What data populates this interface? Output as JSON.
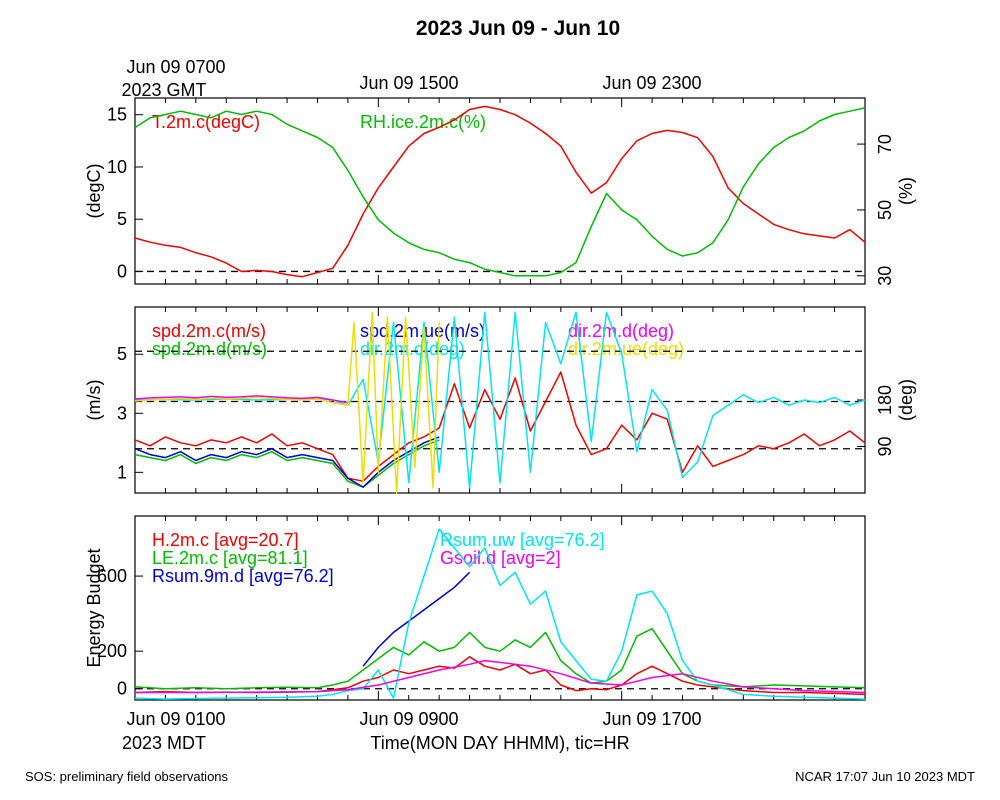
{
  "title": "2023 Jun 09 - Jun 10",
  "top_axis": {
    "gmt_first": "Jun 09 0700",
    "gmt_first_year": "2023 GMT",
    "tick2": "Jun 09 1500",
    "tick3": "Jun 09 2300"
  },
  "bottom_axis": {
    "tick1": "Jun 09 0100",
    "tick1_year": "2023 MDT",
    "tick2": "Jun 09 0900",
    "tick3": "Jun 09 1700",
    "xlabel": "Time(MON DAY HHMM), tic=HR"
  },
  "footer": {
    "left": "SOS: preliminary field observations",
    "right": "NCAR 17:07 Jun 10 2023 MDT"
  },
  "colors": {
    "red": "#ee0000",
    "green": "#00bb00",
    "blue": "#0000cc",
    "cyan": "#00e5ee",
    "magenta": "#ee00ee",
    "yellow": "#eedd00"
  },
  "chart_data": [
    {
      "type": "line",
      "xlim": [
        0,
        24
      ],
      "ylabel": "(degC)",
      "ylim": [
        -1.2,
        16.6
      ],
      "yticks": [
        "0",
        "5",
        "10",
        "15"
      ],
      "y2label": "(%)",
      "y2lim": [
        27.5,
        84
      ],
      "y2ticks": [
        "30",
        "50",
        "70"
      ],
      "legend": {
        "t": "T.2m.c(degC)",
        "rh": "RH.ice.2m.c(%)"
      },
      "ref_lines": [
        0
      ],
      "series": [
        {
          "name": "T.2m.c(degC)",
          "color": "red",
          "axis": "left",
          "x": [
            0,
            0.5,
            1,
            1.5,
            2,
            2.5,
            3,
            3.5,
            4,
            4.5,
            5,
            5.5,
            6,
            6.5,
            7,
            7.5,
            8,
            8.5,
            9,
            9.5,
            10,
            10.5,
            11,
            11.5,
            12,
            12.5,
            13,
            13.5,
            14,
            14.5,
            15,
            15.5,
            16,
            16.5,
            17,
            17.5,
            18,
            18.5,
            19,
            19.5,
            20,
            20.5,
            21,
            21.5,
            22,
            22.5,
            23,
            23.5,
            24
          ],
          "values": [
            3.2,
            2.8,
            2.5,
            2.3,
            1.8,
            1.4,
            0.8,
            0.0,
            0.1,
            0.0,
            -0.3,
            -0.5,
            -0.1,
            0.3,
            2.5,
            5.5,
            8,
            10,
            12,
            13.2,
            13.8,
            14.5,
            15.5,
            15.8,
            15.5,
            15,
            14.2,
            13.2,
            12,
            9.5,
            7.5,
            8.5,
            10.8,
            12.5,
            13.2,
            13.5,
            13.3,
            12.8,
            11,
            8,
            6.5,
            5.5,
            4.5,
            4,
            3.6,
            3.4,
            3.2,
            4,
            2.8
          ]
        },
        {
          "name": "RH.ice.2m.c(%)",
          "color": "green",
          "axis": "right",
          "x": [
            0,
            0.5,
            1,
            1.5,
            2,
            2.5,
            3,
            3.5,
            4,
            4.5,
            5,
            5.5,
            6,
            6.5,
            7,
            7.5,
            8,
            8.5,
            9,
            9.5,
            10,
            10.5,
            11,
            11.5,
            12,
            12.5,
            13,
            13.5,
            14,
            14.5,
            15,
            15.5,
            16,
            16.5,
            17,
            17.5,
            18,
            18.5,
            19,
            19.5,
            20,
            20.5,
            21,
            21.5,
            22,
            22.5,
            23,
            23.5,
            24
          ],
          "values": [
            75,
            78,
            79,
            80,
            79,
            78,
            80,
            79,
            80,
            79,
            76,
            74,
            72,
            69,
            62,
            54,
            47,
            43,
            40,
            38,
            37,
            35,
            34,
            32,
            31,
            30,
            30,
            30,
            31,
            34,
            45,
            55,
            50,
            47,
            42,
            38,
            36,
            37,
            40,
            47,
            57,
            64,
            69,
            72,
            74,
            77,
            79,
            80,
            81
          ]
        }
      ]
    },
    {
      "type": "line",
      "xlim": [
        0,
        24
      ],
      "ylabel": "(m/s)",
      "ylim": [
        0.3,
        6.6
      ],
      "yticks": [
        "1",
        "3",
        "5"
      ],
      "y2label": "(deg)",
      "y2lim": [
        0,
        360
      ],
      "y2ticks": [
        "90",
        "180"
      ],
      "legend": {
        "spd_c": "spd.2m.c(m/s)",
        "spd_d": "spd.2m.d(m/s)",
        "spd_ue": "spd.2m.ue(m/s)",
        "dir_c": "dir.2m.c(deg)",
        "dir_d": "dir.2m.d(deg)",
        "dir_ue": "dir.2m.ue(deg)"
      },
      "ref_lines": [
        1.8,
        3.4,
        5.1
      ],
      "series": [
        {
          "name": "spd.2m.c(m/s)",
          "color": "red",
          "axis": "left",
          "x": [
            0,
            0.5,
            1,
            1.5,
            2,
            2.5,
            3,
            3.5,
            4,
            4.5,
            5,
            5.5,
            6,
            6.5,
            7,
            7.5,
            8,
            8.5,
            9,
            9.5,
            10,
            10.5,
            11,
            11.5,
            12,
            12.5,
            13,
            13.5,
            14,
            14.5,
            15,
            15.5,
            16,
            16.5,
            17,
            17.5,
            18,
            18.5,
            19,
            19.5,
            20,
            20.5,
            21,
            21.5,
            22,
            22.5,
            23,
            23.5,
            24
          ],
          "values": [
            2.1,
            1.9,
            2.2,
            2.0,
            1.9,
            2.1,
            2.0,
            2.2,
            2.0,
            2.3,
            1.9,
            2.0,
            1.8,
            1.6,
            0.8,
            0.7,
            1.2,
            1.6,
            2.0,
            2.2,
            2.5,
            4.0,
            2.5,
            3.8,
            2.8,
            4.2,
            2.4,
            3.4,
            4.4,
            2.6,
            1.6,
            1.8,
            2.6,
            2.1,
            3.0,
            2.8,
            1.0,
            1.9,
            1.2,
            1.4,
            1.6,
            1.9,
            1.8,
            2.0,
            2.3,
            1.9,
            2.1,
            2.4,
            2.0
          ]
        },
        {
          "name": "spd.2m.d(m/s)",
          "color": "green",
          "axis": "left",
          "x": [
            0,
            0.5,
            1,
            1.5,
            2,
            2.5,
            3,
            3.5,
            4,
            4.5,
            5,
            5.5,
            6,
            6.5,
            7,
            7.5,
            8,
            8.5,
            9,
            9.5,
            10
          ],
          "values": [
            1.6,
            1.5,
            1.4,
            1.6,
            1.3,
            1.5,
            1.4,
            1.6,
            1.5,
            1.7,
            1.4,
            1.5,
            1.4,
            1.3,
            0.7,
            0.5,
            0.9,
            1.3,
            1.6,
            1.9,
            2.1
          ]
        },
        {
          "name": "spd.2m.ue(m/s)",
          "color": "blue",
          "axis": "left",
          "x": [
            0,
            0.5,
            1,
            1.5,
            2,
            2.5,
            3,
            3.5,
            4,
            4.5,
            5,
            5.5,
            6,
            6.5,
            7,
            7.5,
            8,
            8.5,
            9,
            9.5,
            10
          ],
          "values": [
            1.8,
            1.6,
            1.5,
            1.7,
            1.4,
            1.6,
            1.5,
            1.7,
            1.6,
            1.8,
            1.5,
            1.6,
            1.5,
            1.4,
            0.8,
            0.5,
            1.0,
            1.4,
            1.7,
            2.0,
            2.2
          ]
        },
        {
          "name": "dir.2m.c(deg)",
          "color": "cyan",
          "axis": "right",
          "x": [
            0,
            1,
            2,
            3,
            4,
            5,
            6,
            6.5,
            7,
            7.5,
            8,
            8.5,
            9,
            9.5,
            10,
            10.5,
            11,
            11.5,
            12,
            12.5,
            13,
            13.5,
            14,
            14.5,
            15,
            15.5,
            16,
            16.5,
            17,
            17.5,
            18,
            18.5,
            19,
            19.5,
            20,
            20.5,
            21,
            21.5,
            22,
            22.5,
            23,
            23.5,
            24
          ],
          "values": [
            180,
            181,
            180,
            182,
            180,
            181,
            183,
            180,
            170,
            220,
            60,
            330,
            20,
            330,
            40,
            340,
            10,
            350,
            20,
            350,
            40,
            330,
            250,
            350,
            100,
            350,
            270,
            80,
            200,
            160,
            30,
            60,
            150,
            170,
            190,
            175,
            185,
            170,
            180,
            175,
            185,
            170,
            180
          ]
        },
        {
          "name": "dir.2m.d(deg)",
          "color": "magenta",
          "axis": "right",
          "x": [
            0,
            0.5,
            1,
            1.5,
            2,
            2.5,
            3,
            3.5,
            4,
            4.5,
            5,
            5.5,
            6,
            6.5,
            7
          ],
          "values": [
            182,
            184,
            185,
            186,
            184,
            187,
            185,
            186,
            188,
            186,
            184,
            183,
            185,
            180,
            175
          ]
        },
        {
          "name": "dir.2m.ue(deg)",
          "color": "yellow",
          "axis": "right",
          "x": [
            0,
            0.5,
            1,
            1.5,
            2,
            2.5,
            3,
            3.5,
            4,
            4.5,
            5,
            5.5,
            6,
            6.5,
            7,
            7.2,
            7.5,
            7.8,
            8,
            8.3,
            8.6,
            8.9,
            9.2,
            9.5,
            9.8,
            10
          ],
          "values": [
            178,
            180,
            181,
            183,
            181,
            184,
            182,
            183,
            185,
            183,
            181,
            180,
            182,
            175,
            170,
            330,
            20,
            350,
            40,
            340,
            0,
            340,
            50,
            320,
            10,
            330
          ]
        }
      ]
    },
    {
      "type": "line",
      "xlim": [
        0,
        24
      ],
      "ylabel": "Energy Budget",
      "ylim": [
        -60,
        920
      ],
      "yticks": [
        "0",
        "200",
        "600"
      ],
      "legend": {
        "h": "H.2m.c [avg=20.7]",
        "le": "LE.2m.c [avg=81.1]",
        "rsum9": "Rsum.9m.d [avg=76.2]",
        "rsumuw": "Rsum.uw [avg=76.2]",
        "gsoil": "Gsoil.d [avg=2]"
      },
      "ref_lines": [
        0
      ],
      "series": [
        {
          "name": "H.2m.c",
          "color": "red",
          "x": [
            0,
            1,
            2,
            3,
            4,
            5,
            6,
            6.5,
            7,
            7.5,
            8,
            8.5,
            9,
            9.5,
            10,
            10.5,
            11,
            11.5,
            12,
            12.5,
            13,
            13.5,
            14,
            14.5,
            15,
            15.5,
            16,
            16.5,
            17,
            17.5,
            18,
            18.5,
            19,
            20,
            21,
            22,
            23,
            24
          ],
          "values": [
            -20,
            -15,
            -20,
            -18,
            -20,
            -18,
            -15,
            -5,
            5,
            40,
            60,
            100,
            80,
            100,
            120,
            110,
            170,
            120,
            100,
            130,
            80,
            100,
            20,
            -10,
            0,
            -5,
            20,
            80,
            120,
            80,
            40,
            20,
            10,
            -10,
            -20,
            -20,
            -25,
            -30
          ]
        },
        {
          "name": "LE.2m.c",
          "color": "green",
          "x": [
            0,
            1,
            2,
            3,
            4,
            5,
            6,
            6.5,
            7,
            7.5,
            8,
            8.5,
            9,
            9.5,
            10,
            10.5,
            11,
            11.5,
            12,
            12.5,
            13,
            13.5,
            14,
            14.5,
            15,
            15.5,
            16,
            16.5,
            17,
            17.5,
            18,
            18.5,
            19,
            20,
            21,
            22,
            23,
            24
          ],
          "values": [
            10,
            0,
            5,
            0,
            5,
            8,
            5,
            20,
            40,
            100,
            160,
            220,
            180,
            250,
            200,
            220,
            300,
            220,
            200,
            260,
            220,
            300,
            150,
            80,
            30,
            40,
            100,
            280,
            320,
            200,
            80,
            40,
            20,
            10,
            20,
            15,
            10,
            5
          ]
        },
        {
          "name": "Rsum.9m.d",
          "color": "blue",
          "x": [
            7.5,
            8,
            8.5,
            9,
            9.5,
            10,
            10.5,
            11
          ],
          "values": [
            120,
            220,
            300,
            360,
            420,
            480,
            540,
            620
          ]
        },
        {
          "name": "Rsum.uw",
          "color": "cyan",
          "x": [
            0,
            1,
            2,
            3,
            4,
            5,
            6,
            6.5,
            7,
            7.5,
            8,
            8.5,
            9,
            9.5,
            10,
            10.5,
            11,
            11.5,
            12,
            12.5,
            13,
            13.5,
            14,
            14.5,
            15,
            15.5,
            16,
            16.5,
            17,
            17.5,
            18,
            18.5,
            19,
            20,
            21,
            22,
            23,
            24
          ],
          "values": [
            -50,
            -55,
            -52,
            -50,
            -48,
            -45,
            -40,
            -30,
            -10,
            0,
            100,
            -50,
            350,
            600,
            850,
            750,
            650,
            750,
            550,
            620,
            450,
            520,
            250,
            150,
            50,
            40,
            200,
            500,
            520,
            400,
            150,
            40,
            20,
            -30,
            -40,
            -45,
            -50,
            -55
          ]
        },
        {
          "name": "Gsoil.d",
          "color": "magenta",
          "x": [
            0,
            2,
            4,
            6,
            7,
            8,
            9,
            10,
            11,
            11.5,
            12,
            13,
            14,
            15,
            16,
            17,
            18,
            19,
            20,
            22,
            24
          ],
          "values": [
            -20,
            -20,
            -18,
            -15,
            -5,
            20,
            60,
            100,
            130,
            150,
            140,
            120,
            80,
            30,
            20,
            60,
            80,
            40,
            10,
            -10,
            -20
          ]
        }
      ]
    }
  ]
}
